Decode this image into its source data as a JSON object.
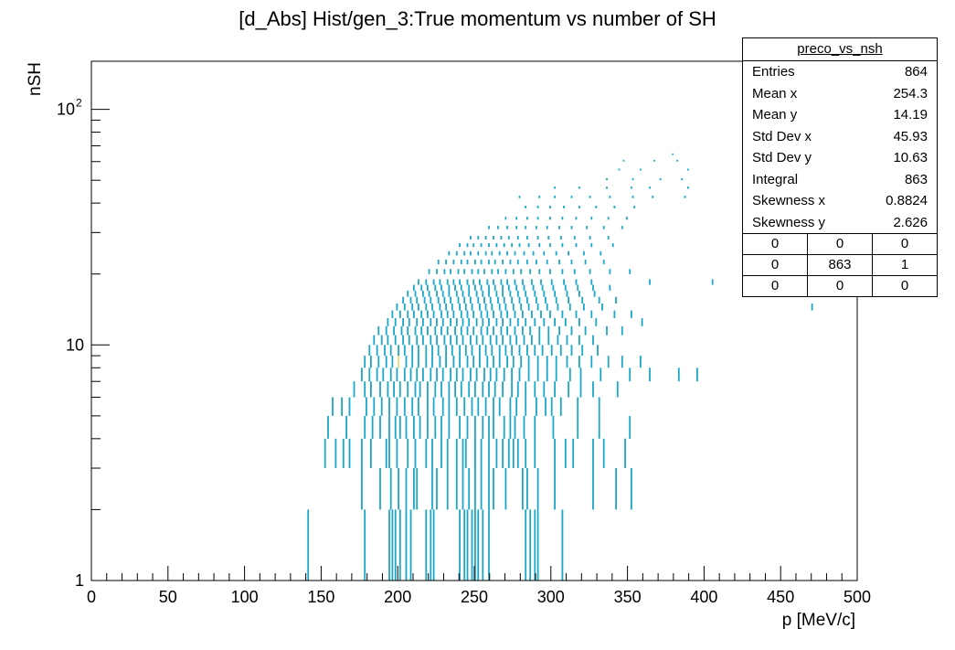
{
  "page": {
    "title": "[d_Abs] Hist/gen_3:True momentum vs number of SH"
  },
  "stats_box": {
    "name": "preco_vs_nsh",
    "rows": [
      {
        "label": "Entries",
        "value": "864"
      },
      {
        "label": "Mean x",
        "value": "254.3"
      },
      {
        "label": "Mean y",
        "value": "14.19"
      },
      {
        "label": "Std Dev x",
        "value": "45.93"
      },
      {
        "label": "Std Dev y",
        "value": "10.63"
      },
      {
        "label": "Integral",
        "value": "863"
      },
      {
        "label": "Skewness x",
        "value": "0.8824"
      },
      {
        "label": "Skewness y",
        "value": "2.626"
      }
    ],
    "overflow_grid": [
      [
        "0",
        "0",
        "0"
      ],
      [
        "0",
        "863",
        "1"
      ],
      [
        "0",
        "0",
        "0"
      ]
    ]
  },
  "chart_data": {
    "type": "heatmap",
    "title": "[d_Abs] Hist/gen_3:True momentum vs number of SH",
    "xlabel": "p [MeV/c]",
    "ylabel": "nSH",
    "xlim": [
      0,
      500
    ],
    "ylim": [
      1,
      160
    ],
    "yscale": "log",
    "x_ticks": [
      "0",
      "50",
      "100",
      "150",
      "200",
      "250",
      "300",
      "350",
      "400",
      "450",
      "500"
    ],
    "y_tick_labels": [
      "1",
      "10",
      "10^2"
    ],
    "colors": {
      "low": "#1aa7c9",
      "high": "#e6e07a"
    },
    "bins": [
      {
        "y": 1,
        "x": [
          141,
          178,
          194,
          196,
          198,
          201,
          205,
          208,
          218,
          221,
          223,
          240,
          243,
          245,
          248,
          250,
          252,
          255,
          259,
          283,
          286,
          289,
          291,
          307
        ]
      },
      {
        "y": 2,
        "x": [
          176,
          188,
          195,
          200,
          205,
          210,
          212,
          222,
          225,
          232,
          238,
          242,
          246,
          250,
          254,
          259,
          262,
          270,
          281,
          284,
          291,
          302,
          327,
          342,
          352
        ]
      },
      {
        "y": 3,
        "x": [
          152,
          159,
          164,
          168,
          176,
          182,
          192,
          194,
          199,
          206,
          211,
          218,
          222,
          228,
          232,
          238,
          242,
          244,
          250,
          254,
          259,
          264,
          268,
          272,
          275,
          278,
          283,
          289,
          302,
          309,
          314,
          327,
          334,
          348
        ]
      },
      {
        "y": 4,
        "x": [
          154,
          166,
          178,
          183,
          188,
          194,
          198,
          201,
          205,
          210,
          214,
          219,
          224,
          228,
          233,
          240,
          245,
          250,
          255,
          259,
          262,
          269,
          273,
          276,
          282,
          289,
          301,
          317,
          331,
          351
        ]
      },
      {
        "y": 5,
        "x": [
          157,
          163,
          168,
          179,
          184,
          189,
          194,
          199,
          204,
          209,
          213,
          219,
          223,
          229,
          233,
          238,
          243,
          248,
          252,
          257,
          262,
          266,
          273,
          277,
          283,
          290,
          296,
          300,
          306,
          317,
          331
        ]
      },
      {
        "y": 6,
        "x": [
          171,
          178,
          182,
          188,
          193,
          197,
          201,
          206,
          211,
          214,
          219,
          224,
          228,
          233,
          237,
          241,
          246,
          250,
          255,
          259,
          263,
          268,
          274,
          278,
          283,
          289,
          295,
          302,
          311,
          319,
          327,
          343
        ]
      },
      {
        "y": 7,
        "x": [
          176,
          181,
          186,
          190,
          195,
          199,
          204,
          208,
          212,
          216,
          221,
          225,
          229,
          234,
          238,
          242,
          247,
          251,
          256,
          260,
          264,
          269,
          274,
          279,
          285,
          291,
          297,
          303,
          312,
          319,
          332,
          351,
          364,
          383,
          395
        ]
      },
      {
        "y": 8,
        "x": [
          178,
          182,
          187,
          192,
          196,
          200,
          205,
          209,
          213,
          218,
          222,
          227,
          231,
          236,
          240,
          245,
          249,
          253,
          258,
          262,
          266,
          271,
          275,
          280,
          285,
          291,
          297,
          303,
          310,
          318,
          326,
          337,
          346,
          358
        ]
      },
      {
        "y": 9,
        "x": [
          181,
          186,
          191,
          195,
          200,
          204,
          209,
          213,
          218,
          222,
          226,
          231,
          235,
          240,
          244,
          248,
          253,
          257,
          261,
          266,
          270,
          274,
          279,
          284,
          289,
          294,
          300,
          306,
          313,
          320,
          330
        ]
      },
      {
        "y": 10,
        "x": [
          184,
          189,
          193,
          198,
          203,
          207,
          212,
          216,
          221,
          225,
          230,
          234,
          238,
          242,
          247,
          251,
          255,
          260,
          264,
          268,
          273,
          277,
          282,
          287,
          292,
          298,
          304,
          310,
          318,
          327
        ]
      },
      {
        "y": 11,
        "x": [
          187,
          192,
          197,
          202,
          206,
          211,
          215,
          219,
          224,
          228,
          232,
          237,
          241,
          245,
          249,
          254,
          258,
          262,
          267,
          271,
          276,
          281,
          286,
          292,
          298,
          305,
          313,
          322,
          336,
          346
        ]
      },
      {
        "y": 12,
        "x": [
          193,
          198,
          203,
          207,
          212,
          216,
          221,
          225,
          229,
          234,
          238,
          242,
          246,
          251,
          255,
          259,
          264,
          268,
          273,
          278,
          283,
          289,
          295,
          302,
          309,
          318,
          329,
          359
        ]
      },
      {
        "y": 13,
        "x": [
          196,
          201,
          206,
          210,
          215,
          219,
          223,
          228,
          232,
          236,
          241,
          245,
          249,
          254,
          258,
          262,
          267,
          271,
          276,
          281,
          287,
          293,
          299,
          307,
          316,
          326,
          341,
          352
        ]
      },
      {
        "y": 14,
        "x": [
          199,
          204,
          209,
          213,
          218,
          222,
          227,
          231,
          235,
          240,
          244,
          248,
          253,
          257,
          261,
          266,
          270,
          275,
          280,
          285,
          291,
          297,
          304,
          312,
          321,
          333
        ]
      },
      {
        "y": 15,
        "x": [
          203,
          208,
          212,
          217,
          221,
          226,
          230,
          234,
          239,
          243,
          247,
          252,
          256,
          260,
          265,
          269,
          274,
          279,
          284,
          290,
          296,
          303,
          311,
          320,
          331,
          342
        ]
      },
      {
        "y": 16,
        "x": [
          206,
          211,
          216,
          220,
          225,
          229,
          233,
          238,
          242,
          246,
          251,
          255,
          259,
          264,
          268,
          273,
          278,
          283,
          289,
          295,
          302,
          310,
          318,
          328
        ]
      },
      {
        "y": 17,
        "x": [
          210,
          215,
          219,
          224,
          228,
          233,
          237,
          241,
          246,
          250,
          254,
          259,
          263,
          268,
          272,
          277,
          282,
          288,
          294,
          301,
          309,
          317,
          327,
          338
        ]
      },
      {
        "y": 18,
        "x": [
          213,
          218,
          223,
          227,
          232,
          236,
          240,
          245,
          249,
          253,
          258,
          262,
          267,
          271,
          276,
          281,
          287,
          293,
          300,
          308,
          316,
          326
        ]
      },
      {
        "y": 20,
        "x": [
          220,
          225,
          230,
          234,
          239,
          243,
          248,
          252,
          256,
          261,
          265,
          270,
          275,
          280,
          286,
          292,
          299,
          307,
          315,
          325,
          338,
          351
        ]
      },
      {
        "y": 22,
        "x": [
          226,
          231,
          236,
          241,
          245,
          250,
          254,
          259,
          263,
          268,
          273,
          278,
          284,
          290,
          297,
          305,
          313,
          322,
          334
        ]
      },
      {
        "y": 24,
        "x": [
          233,
          238,
          243,
          247,
          252,
          257,
          261,
          266,
          271,
          276,
          282,
          288,
          295,
          303,
          311,
          321,
          332
        ]
      },
      {
        "y": 26,
        "x": [
          240,
          245,
          249,
          254,
          259,
          264,
          269,
          274,
          279,
          285,
          292,
          299,
          307,
          316,
          326,
          340
        ]
      },
      {
        "y": 28,
        "x": [
          247,
          252,
          257,
          262,
          267,
          272,
          278,
          284,
          291,
          298,
          306,
          315,
          325,
          337
        ]
      },
      {
        "y": 31,
        "x": [
          259,
          265,
          271,
          277,
          283,
          290,
          297,
          305,
          313,
          323,
          334,
          346
        ]
      },
      {
        "y": 34,
        "x": [
          270,
          277,
          284,
          291,
          299,
          307,
          316,
          326,
          337,
          349
        ]
      },
      {
        "y": 38,
        "x": [
          283,
          291,
          299,
          308,
          318,
          329,
          341,
          354
        ]
      },
      {
        "y": 42,
        "x": [
          279,
          292,
          302,
          313,
          325,
          338,
          353,
          366,
          387
        ]
      },
      {
        "y": 46,
        "x": [
          302,
          318,
          336,
          352,
          364,
          389
        ]
      },
      {
        "y": 50,
        "x": [
          336,
          353,
          371,
          385
        ]
      },
      {
        "y": 55,
        "x": [
          344,
          358,
          389
        ]
      },
      {
        "y": 60,
        "x": [
          347,
          367,
          382
        ]
      },
      {
        "y": 64,
        "x": [
          379
        ]
      },
      {
        "y": 18,
        "x": [
          364,
          405
        ]
      },
      {
        "y": 14,
        "x": [
          470
        ]
      }
    ],
    "highlight_bins": [
      {
        "x": 236,
        "y": 16
      },
      {
        "x": 244,
        "y": 13
      },
      {
        "x": 200,
        "y": 8
      },
      {
        "x": 271,
        "y": 5
      },
      {
        "x": 196,
        "y": 4
      },
      {
        "x": 203,
        "y": 6
      },
      {
        "x": 226,
        "y": 3
      }
    ]
  }
}
